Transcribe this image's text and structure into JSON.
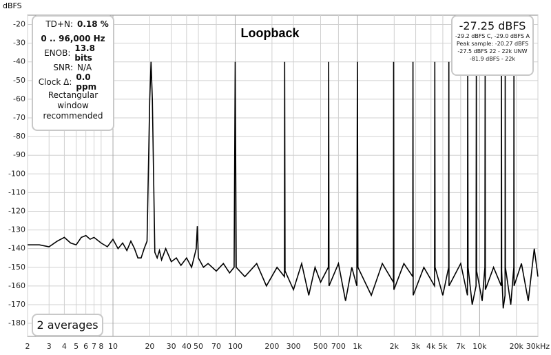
{
  "chart_data": {
    "type": "line",
    "title": "Loopback",
    "y_label": "dBFS",
    "color": "#000000",
    "log_x": true,
    "grid": true,
    "xlim": [
      2,
      30000
    ],
    "ylim": [
      -187,
      -15
    ],
    "xticks": [
      2,
      3,
      4,
      5,
      6,
      7,
      8,
      10,
      20,
      30,
      40,
      50,
      70,
      100,
      200,
      300,
      500,
      700,
      {
        "value": 1000,
        "label": "1k"
      },
      {
        "value": 2000,
        "label": "2k"
      },
      {
        "value": 3000,
        "label": "3k"
      },
      {
        "value": 4000,
        "label": "4k"
      },
      {
        "value": 5000,
        "label": "5k"
      },
      {
        "value": 7000,
        "label": "7k"
      },
      {
        "value": 10000,
        "label": "10k"
      },
      {
        "value": 20000,
        "label": "20k"
      },
      {
        "value": 30000,
        "label": "30kHz"
      }
    ],
    "yticks": [
      -20,
      -30,
      -40,
      -50,
      -60,
      -70,
      -80,
      -90,
      -100,
      -110,
      -120,
      -130,
      -140,
      -150,
      -160,
      -170,
      -180
    ],
    "x": [
      2,
      2.5,
      3,
      3.5,
      4,
      4.5,
      5,
      5.5,
      6,
      6.5,
      7,
      8,
      9,
      10,
      11,
      12,
      13,
      14,
      15,
      16,
      17,
      18,
      19,
      20,
      20.5,
      21,
      22,
      23,
      24,
      25,
      27,
      30,
      33,
      36,
      40,
      44,
      48,
      49,
      50,
      55,
      60,
      70,
      80,
      90,
      98,
      100,
      102,
      120,
      150,
      180,
      220,
      253,
      254,
      256,
      300,
      350,
      400,
      450,
      500,
      578,
      582,
      586,
      700,
      800,
      900,
      990,
      1000,
      1010,
      1300,
      1600,
      1970,
      1980,
      1990,
      2400,
      2840,
      2850,
      2860,
      3500,
      4280,
      4300,
      4320,
      5000,
      5580,
      5600,
      5620,
      7000,
      7950,
      8000,
      8050,
      8700,
      9350,
      9400,
      9450,
      10500,
      11050,
      11100,
      11150,
      13000,
      15050,
      15100,
      15150,
      15600,
      16150,
      16200,
      16250,
      18000,
      19050,
      19100,
      19150,
      22000,
      25000,
      28000,
      30000
    ],
    "values": [
      -138,
      -138,
      -139,
      -136,
      -134,
      -137,
      -138,
      -134,
      -133,
      -135,
      -134,
      -137,
      -139,
      -135,
      -140,
      -137,
      -141,
      -136,
      -140,
      -145,
      -145,
      -140,
      -136,
      -60,
      -40,
      -60,
      -142,
      -145,
      -141,
      -146,
      -140,
      -147,
      -145,
      -149,
      -145,
      -150,
      -140,
      -128,
      -145,
      -150,
      -148,
      -152,
      -148,
      -153,
      -150,
      -40,
      -150,
      -155,
      -148,
      -160,
      -150,
      -155,
      -40,
      -152,
      -162,
      -148,
      -165,
      -150,
      -158,
      -150,
      -40,
      -160,
      -148,
      -168,
      -150,
      -160,
      -40,
      -150,
      -165,
      -148,
      -158,
      -40,
      -162,
      -148,
      -155,
      -40,
      -165,
      -150,
      -160,
      -40,
      -150,
      -165,
      -150,
      -40,
      -160,
      -148,
      -165,
      -40,
      -150,
      -170,
      -160,
      -40,
      -152,
      -168,
      -150,
      -40,
      -162,
      -150,
      -160,
      -40,
      -152,
      -172,
      -165,
      -40,
      -150,
      -170,
      -150,
      -40,
      -160,
      -148,
      -168,
      -140,
      -155
    ]
  },
  "info_panel": {
    "rows": [
      {
        "label": "TD+N:",
        "value": "0.18 %"
      }
    ],
    "range": "0 .. 96,000 Hz",
    "rows2": [
      {
        "label": "ENOB:",
        "value": "13.8 bits"
      },
      {
        "label": "SNR:",
        "value": "N/A"
      },
      {
        "label": "Clock Δ:",
        "value": "0.0 ppm"
      }
    ],
    "note": [
      "Rectangular",
      "window",
      "recommended"
    ]
  },
  "level_panel": {
    "level": "-27.25 dBFS",
    "lines": [
      "-29.2 dBFS C, -29.0 dBFS A",
      "Peak sample: -20.27 dBFS",
      "-27.5 dBFS 22 - 22k UNW",
      "-81.9 dBFS - 22k"
    ]
  },
  "averages": "2 averages"
}
